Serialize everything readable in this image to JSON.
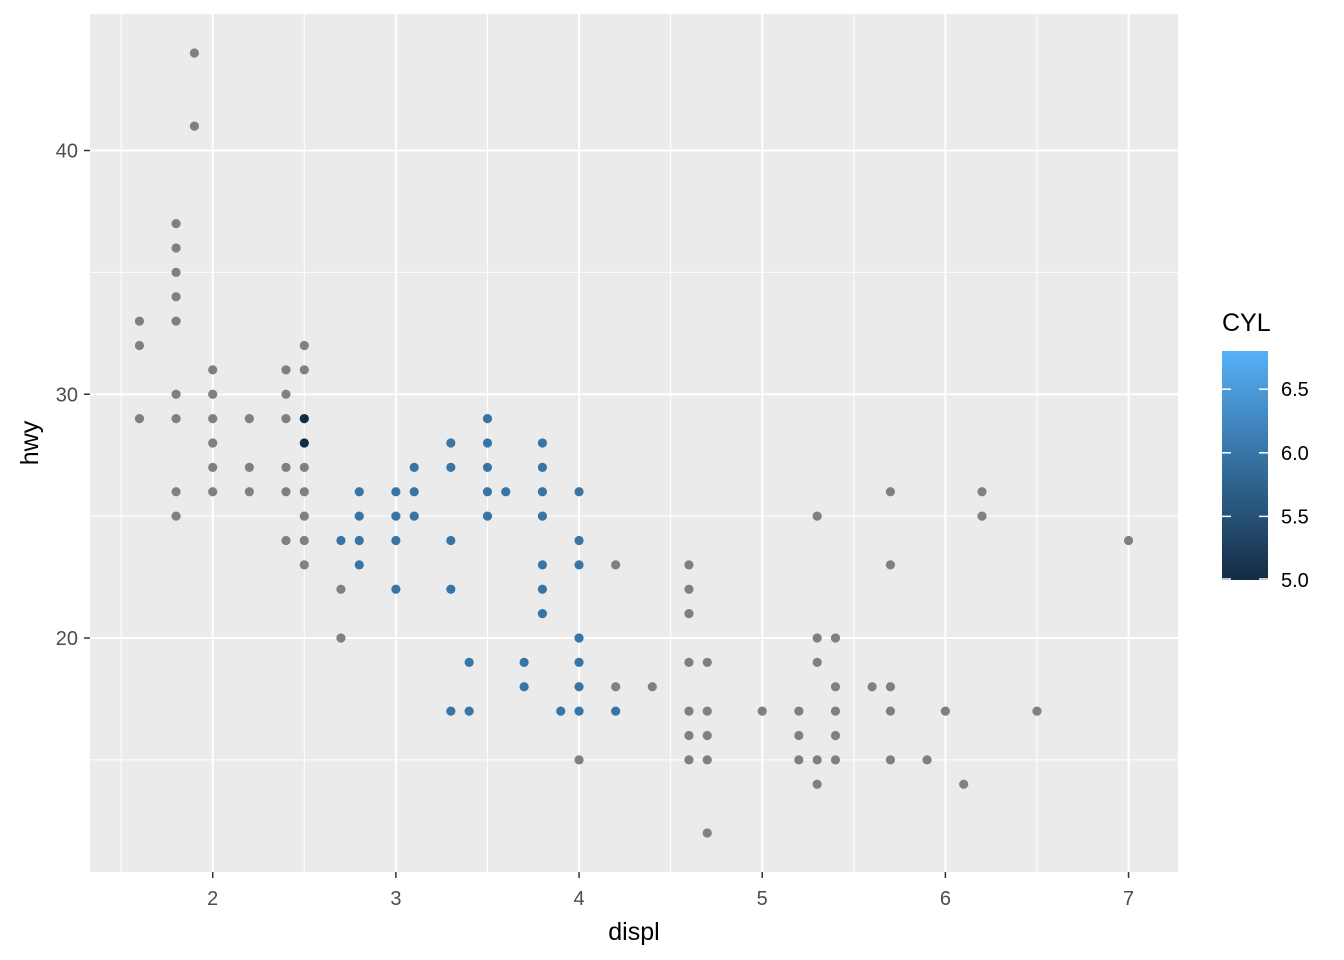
{
  "chart_data": {
    "type": "scatter",
    "title": "",
    "xlabel": "displ",
    "ylabel": "hwy",
    "xlim": [
      1.33,
      7.27
    ],
    "ylim": [
      10.4,
      45.6
    ],
    "x_ticks": [
      2,
      3,
      4,
      5,
      6,
      7
    ],
    "x_tick_labels": [
      "2",
      "3",
      "4",
      "5",
      "6",
      "7"
    ],
    "y_ticks": [
      20,
      30,
      40
    ],
    "y_tick_labels": [
      "20",
      "30",
      "40"
    ],
    "grid": true,
    "legend": {
      "title": "CYL",
      "placement": "right",
      "type": "colorbar",
      "range": [
        5.0,
        6.8
      ],
      "breaks": [
        5.0,
        5.5,
        6.0,
        6.5
      ],
      "break_labels": [
        "5.0",
        "5.5",
        "6.0",
        "6.5"
      ],
      "low_color": "#132b43",
      "high_color": "#56b1f7",
      "na_color": "#808080"
    },
    "points": [
      {
        "x": 1.6,
        "y": 33,
        "c": null
      },
      {
        "x": 1.6,
        "y": 32,
        "c": null
      },
      {
        "x": 1.6,
        "y": 29,
        "c": null
      },
      {
        "x": 1.8,
        "y": 37,
        "c": null
      },
      {
        "x": 1.8,
        "y": 36,
        "c": null
      },
      {
        "x": 1.8,
        "y": 35,
        "c": null
      },
      {
        "x": 1.8,
        "y": 34,
        "c": null
      },
      {
        "x": 1.8,
        "y": 33,
        "c": null
      },
      {
        "x": 1.8,
        "y": 30,
        "c": null
      },
      {
        "x": 1.8,
        "y": 29,
        "c": null
      },
      {
        "x": 1.8,
        "y": 26,
        "c": null
      },
      {
        "x": 1.8,
        "y": 25,
        "c": null
      },
      {
        "x": 1.9,
        "y": 44,
        "c": null
      },
      {
        "x": 1.9,
        "y": 41,
        "c": null
      },
      {
        "x": 2.0,
        "y": 31,
        "c": null
      },
      {
        "x": 2.0,
        "y": 30,
        "c": null
      },
      {
        "x": 2.0,
        "y": 29,
        "c": null
      },
      {
        "x": 2.0,
        "y": 28,
        "c": null
      },
      {
        "x": 2.0,
        "y": 27,
        "c": null
      },
      {
        "x": 2.0,
        "y": 26,
        "c": null
      },
      {
        "x": 2.2,
        "y": 29,
        "c": null
      },
      {
        "x": 2.2,
        "y": 27,
        "c": null
      },
      {
        "x": 2.2,
        "y": 26,
        "c": null
      },
      {
        "x": 2.4,
        "y": 31,
        "c": null
      },
      {
        "x": 2.4,
        "y": 30,
        "c": null
      },
      {
        "x": 2.4,
        "y": 29,
        "c": null
      },
      {
        "x": 2.4,
        "y": 27,
        "c": null
      },
      {
        "x": 2.4,
        "y": 26,
        "c": null
      },
      {
        "x": 2.4,
        "y": 24,
        "c": null
      },
      {
        "x": 2.5,
        "y": 32,
        "c": null
      },
      {
        "x": 2.5,
        "y": 31,
        "c": null
      },
      {
        "x": 2.5,
        "y": 27,
        "c": null
      },
      {
        "x": 2.5,
        "y": 26,
        "c": null
      },
      {
        "x": 2.5,
        "y": 25,
        "c": null
      },
      {
        "x": 2.5,
        "y": 24,
        "c": null
      },
      {
        "x": 2.5,
        "y": 23,
        "c": null
      },
      {
        "x": 2.5,
        "y": 29,
        "c": 5
      },
      {
        "x": 2.5,
        "y": 28,
        "c": 5
      },
      {
        "x": 2.7,
        "y": 24,
        "c": 6
      },
      {
        "x": 2.7,
        "y": 22,
        "c": null
      },
      {
        "x": 2.7,
        "y": 20,
        "c": null
      },
      {
        "x": 2.8,
        "y": 26,
        "c": 6
      },
      {
        "x": 2.8,
        "y": 25,
        "c": 6
      },
      {
        "x": 2.8,
        "y": 24,
        "c": 6
      },
      {
        "x": 2.8,
        "y": 23,
        "c": 6
      },
      {
        "x": 3.0,
        "y": 26,
        "c": 6
      },
      {
        "x": 3.0,
        "y": 25,
        "c": 6
      },
      {
        "x": 3.0,
        "y": 24,
        "c": 6
      },
      {
        "x": 3.0,
        "y": 22,
        "c": 6
      },
      {
        "x": 3.1,
        "y": 27,
        "c": 6
      },
      {
        "x": 3.1,
        "y": 26,
        "c": 6
      },
      {
        "x": 3.1,
        "y": 25,
        "c": 6
      },
      {
        "x": 3.3,
        "y": 28,
        "c": 6
      },
      {
        "x": 3.3,
        "y": 27,
        "c": 6
      },
      {
        "x": 3.3,
        "y": 24,
        "c": 6
      },
      {
        "x": 3.3,
        "y": 22,
        "c": 6
      },
      {
        "x": 3.3,
        "y": 17,
        "c": 6
      },
      {
        "x": 3.4,
        "y": 19,
        "c": 6
      },
      {
        "x": 3.4,
        "y": 17,
        "c": 6
      },
      {
        "x": 3.5,
        "y": 29,
        "c": 6
      },
      {
        "x": 3.5,
        "y": 28,
        "c": 6
      },
      {
        "x": 3.5,
        "y": 27,
        "c": 6
      },
      {
        "x": 3.5,
        "y": 26,
        "c": 6
      },
      {
        "x": 3.5,
        "y": 25,
        "c": 6
      },
      {
        "x": 3.6,
        "y": 26,
        "c": 6
      },
      {
        "x": 3.7,
        "y": 19,
        "c": 6
      },
      {
        "x": 3.7,
        "y": 18,
        "c": 6
      },
      {
        "x": 3.8,
        "y": 28,
        "c": 6
      },
      {
        "x": 3.8,
        "y": 27,
        "c": 6
      },
      {
        "x": 3.8,
        "y": 26,
        "c": 6
      },
      {
        "x": 3.8,
        "y": 25,
        "c": 6
      },
      {
        "x": 3.8,
        "y": 23,
        "c": 6
      },
      {
        "x": 3.8,
        "y": 22,
        "c": 6
      },
      {
        "x": 3.8,
        "y": 21,
        "c": 6
      },
      {
        "x": 3.9,
        "y": 17,
        "c": 6
      },
      {
        "x": 4.0,
        "y": 26,
        "c": 6
      },
      {
        "x": 4.0,
        "y": 24,
        "c": 6
      },
      {
        "x": 4.0,
        "y": 23,
        "c": 6
      },
      {
        "x": 4.0,
        "y": 20,
        "c": 6
      },
      {
        "x": 4.0,
        "y": 19,
        "c": 6
      },
      {
        "x": 4.0,
        "y": 18,
        "c": 6
      },
      {
        "x": 4.0,
        "y": 17,
        "c": 6
      },
      {
        "x": 4.0,
        "y": 15,
        "c": null
      },
      {
        "x": 4.2,
        "y": 23,
        "c": null
      },
      {
        "x": 4.2,
        "y": 18,
        "c": null
      },
      {
        "x": 4.2,
        "y": 17,
        "c": 6
      },
      {
        "x": 4.4,
        "y": 18,
        "c": null
      },
      {
        "x": 4.6,
        "y": 23,
        "c": null
      },
      {
        "x": 4.6,
        "y": 22,
        "c": null
      },
      {
        "x": 4.6,
        "y": 21,
        "c": null
      },
      {
        "x": 4.6,
        "y": 19,
        "c": null
      },
      {
        "x": 4.6,
        "y": 17,
        "c": null
      },
      {
        "x": 4.6,
        "y": 16,
        "c": null
      },
      {
        "x": 4.6,
        "y": 15,
        "c": null
      },
      {
        "x": 4.7,
        "y": 19,
        "c": null
      },
      {
        "x": 4.7,
        "y": 17,
        "c": null
      },
      {
        "x": 4.7,
        "y": 16,
        "c": null
      },
      {
        "x": 4.7,
        "y": 15,
        "c": null
      },
      {
        "x": 4.7,
        "y": 12,
        "c": null
      },
      {
        "x": 5.0,
        "y": 17,
        "c": null
      },
      {
        "x": 5.2,
        "y": 17,
        "c": null
      },
      {
        "x": 5.2,
        "y": 16,
        "c": null
      },
      {
        "x": 5.2,
        "y": 15,
        "c": null
      },
      {
        "x": 5.3,
        "y": 25,
        "c": null
      },
      {
        "x": 5.3,
        "y": 20,
        "c": null
      },
      {
        "x": 5.3,
        "y": 19,
        "c": null
      },
      {
        "x": 5.3,
        "y": 15,
        "c": null
      },
      {
        "x": 5.3,
        "y": 14,
        "c": null
      },
      {
        "x": 5.4,
        "y": 20,
        "c": null
      },
      {
        "x": 5.4,
        "y": 18,
        "c": null
      },
      {
        "x": 5.4,
        "y": 17,
        "c": null
      },
      {
        "x": 5.4,
        "y": 16,
        "c": null
      },
      {
        "x": 5.4,
        "y": 15,
        "c": null
      },
      {
        "x": 5.6,
        "y": 18,
        "c": null
      },
      {
        "x": 5.7,
        "y": 26,
        "c": null
      },
      {
        "x": 5.7,
        "y": 23,
        "c": null
      },
      {
        "x": 5.7,
        "y": 18,
        "c": null
      },
      {
        "x": 5.7,
        "y": 17,
        "c": null
      },
      {
        "x": 5.7,
        "y": 15,
        "c": null
      },
      {
        "x": 5.9,
        "y": 15,
        "c": null
      },
      {
        "x": 6.0,
        "y": 17,
        "c": null
      },
      {
        "x": 6.1,
        "y": 14,
        "c": null
      },
      {
        "x": 6.2,
        "y": 26,
        "c": null
      },
      {
        "x": 6.2,
        "y": 25,
        "c": null
      },
      {
        "x": 6.5,
        "y": 17,
        "c": null
      },
      {
        "x": 7.0,
        "y": 24,
        "c": null
      }
    ]
  }
}
